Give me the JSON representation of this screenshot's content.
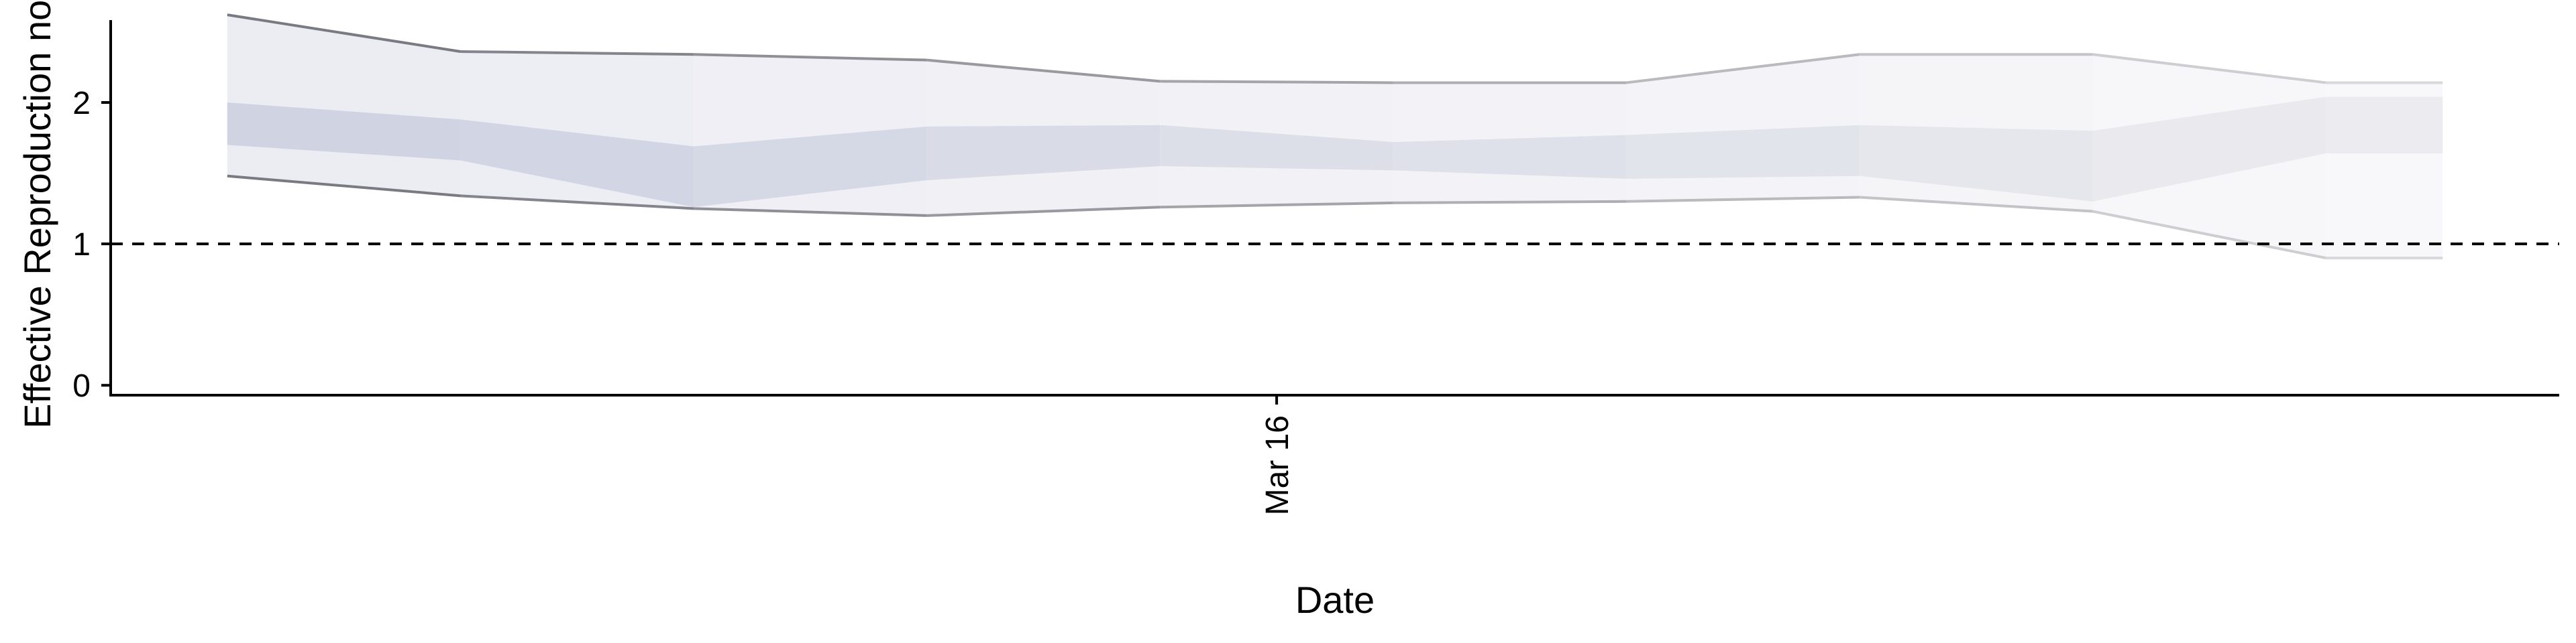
{
  "chart_data": {
    "type": "area",
    "title": "",
    "xlabel": "Date",
    "ylabel": "Effective Reproduction no",
    "x": [
      "2020-03-07",
      "2020-03-08",
      "2020-03-09",
      "2020-03-10",
      "2020-03-11",
      "2020-03-12",
      "2020-03-13",
      "2020-03-14",
      "2020-03-15",
      "2020-03-16",
      "2020-03-17",
      "2020-03-18",
      "2020-03-19",
      "2020-03-20",
      "2020-03-21",
      "2020-03-22",
      "2020-03-23",
      "2020-03-24",
      "2020-03-25",
      "2020-03-26"
    ],
    "xlim": [
      "2020-03-06",
      "2020-03-27"
    ],
    "x_ticks": [
      {
        "date": "2020-03-16",
        "label": "Mar 16"
      }
    ],
    "y_ticks": [
      0,
      1,
      2
    ],
    "ylim": [
      -0.07,
      2.63
    ],
    "reference_line": {
      "y": 1,
      "style": "dashed"
    },
    "series": [
      {
        "lower_90": 1.48,
        "upper_90": 2.62,
        "lower_50": 1.7,
        "upper_50": 2.0
      },
      {
        "lower_90": 1.34,
        "upper_90": 2.36,
        "lower_50": 1.59,
        "upper_50": 1.88
      },
      {
        "lower_90": 1.25,
        "upper_90": 2.34,
        "lower_50": 1.26,
        "upper_50": 1.69
      },
      {
        "lower_90": 1.2,
        "upper_90": 2.3,
        "lower_50": 1.45,
        "upper_50": 1.83
      },
      {
        "lower_90": 1.26,
        "upper_90": 2.15,
        "lower_50": 1.55,
        "upper_50": 1.84
      },
      {
        "lower_90": 1.29,
        "upper_90": 2.14,
        "lower_50": 1.52,
        "upper_50": 1.72
      },
      {
        "lower_90": 1.3,
        "upper_90": 2.14,
        "lower_50": 1.46,
        "upper_50": 1.77
      },
      {
        "lower_90": 1.33,
        "upper_90": 2.34,
        "lower_50": 1.48,
        "upper_50": 1.84
      },
      {
        "lower_90": 1.23,
        "upper_90": 2.34,
        "lower_50": 1.3,
        "upper_50": 1.8
      },
      {
        "lower_90": 0.9,
        "upper_90": 2.14,
        "lower_50": 1.64,
        "upper_50": 2.04
      }
    ],
    "segment_x": [
      "2020-03-07",
      "2020-03-09",
      "2020-03-11",
      "2020-03-13",
      "2020-03-15",
      "2020-03-17",
      "2020-03-19",
      "2020-03-21",
      "2020-03-23",
      "2020-03-25",
      "2020-03-26"
    ],
    "colors": {
      "band_outer_start": "#ececf3",
      "band_outer_end": "#f8f8fa",
      "band_inner_start": "#cfd3e2",
      "band_inner_end": "#ececf0",
      "edge_start": "#7a7a82",
      "edge_end": "#d8d8dc",
      "axis": "#000000"
    },
    "grid": false,
    "legend": "none"
  }
}
